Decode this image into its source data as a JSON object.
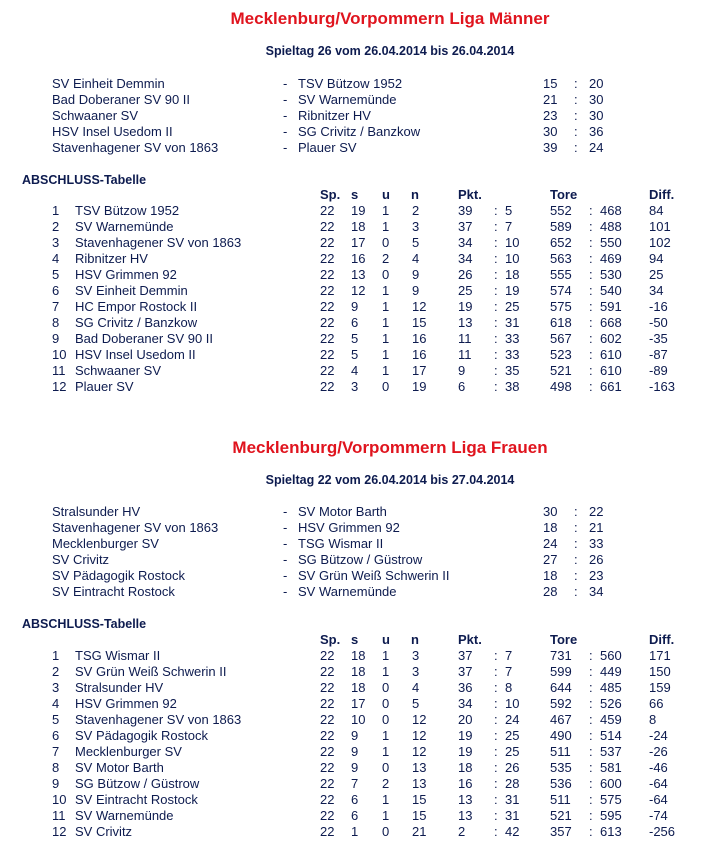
{
  "leagues": [
    {
      "title": "Mecklenburg/Vorpommern Liga Männer",
      "subtitle": "Spieltag 26 vom 26.04.2014 bis 26.04.2014",
      "matches": [
        {
          "home": "SV Einheit Demmin",
          "away": "TSV Bützow 1952",
          "h": "15",
          "a": "20"
        },
        {
          "home": "Bad Doberaner SV 90 II",
          "away": "SV Warnemünde",
          "h": "21",
          "a": "30"
        },
        {
          "home": "Schwaaner SV",
          "away": "Ribnitzer HV",
          "h": "23",
          "a": "30"
        },
        {
          "home": "HSV Insel Usedom II",
          "away": "SG Crivitz / Banzkow",
          "h": "30",
          "a": "36"
        },
        {
          "home": "Stavenhagener SV von 1863",
          "away": "Plauer SV",
          "h": "39",
          "a": "24"
        }
      ],
      "table_title": "ABSCHLUSS-Tabelle",
      "headers": {
        "sp": "Sp.",
        "s": "s",
        "u": "u",
        "n": "n",
        "pkt": "Pkt.",
        "tore": "Tore",
        "diff": "Diff."
      },
      "rows": [
        {
          "rank": "1",
          "team": "TSV Bützow 1952",
          "sp": "22",
          "s": "19",
          "u": "1",
          "n": "2",
          "pp": "39",
          "pm": "5",
          "tp": "552",
          "tm": "468",
          "diff": "84"
        },
        {
          "rank": "2",
          "team": "SV Warnemünde",
          "sp": "22",
          "s": "18",
          "u": "1",
          "n": "3",
          "pp": "37",
          "pm": "7",
          "tp": "589",
          "tm": "488",
          "diff": "101"
        },
        {
          "rank": "3",
          "team": "Stavenhagener SV von 1863",
          "sp": "22",
          "s": "17",
          "u": "0",
          "n": "5",
          "pp": "34",
          "pm": "10",
          "tp": "652",
          "tm": "550",
          "diff": "102"
        },
        {
          "rank": "4",
          "team": "Ribnitzer HV",
          "sp": "22",
          "s": "16",
          "u": "2",
          "n": "4",
          "pp": "34",
          "pm": "10",
          "tp": "563",
          "tm": "469",
          "diff": "94"
        },
        {
          "rank": "5",
          "team": "HSV Grimmen 92",
          "sp": "22",
          "s": "13",
          "u": "0",
          "n": "9",
          "pp": "26",
          "pm": "18",
          "tp": "555",
          "tm": "530",
          "diff": "25"
        },
        {
          "rank": "6",
          "team": "SV Einheit Demmin",
          "sp": "22",
          "s": "12",
          "u": "1",
          "n": "9",
          "pp": "25",
          "pm": "19",
          "tp": "574",
          "tm": "540",
          "diff": "34"
        },
        {
          "rank": "7",
          "team": "HC Empor Rostock II",
          "sp": "22",
          "s": "9",
          "u": "1",
          "n": "12",
          "pp": "19",
          "pm": "25",
          "tp": "575",
          "tm": "591",
          "diff": "-16"
        },
        {
          "rank": "8",
          "team": "SG Crivitz / Banzkow",
          "sp": "22",
          "s": "6",
          "u": "1",
          "n": "15",
          "pp": "13",
          "pm": "31",
          "tp": "618",
          "tm": "668",
          "diff": "-50"
        },
        {
          "rank": "9",
          "team": "Bad Doberaner SV 90 II",
          "sp": "22",
          "s": "5",
          "u": "1",
          "n": "16",
          "pp": "11",
          "pm": "33",
          "tp": "567",
          "tm": "602",
          "diff": "-35"
        },
        {
          "rank": "10",
          "team": "HSV Insel Usedom II",
          "sp": "22",
          "s": "5",
          "u": "1",
          "n": "16",
          "pp": "11",
          "pm": "33",
          "tp": "523",
          "tm": "610",
          "diff": "-87"
        },
        {
          "rank": "11",
          "team": "Schwaaner SV",
          "sp": "22",
          "s": "4",
          "u": "1",
          "n": "17",
          "pp": "9",
          "pm": "35",
          "tp": "521",
          "tm": "610",
          "diff": "-89"
        },
        {
          "rank": "12",
          "team": "Plauer SV",
          "sp": "22",
          "s": "3",
          "u": "0",
          "n": "19",
          "pp": "6",
          "pm": "38",
          "tp": "498",
          "tm": "661",
          "diff": "-163"
        }
      ]
    },
    {
      "title": "Mecklenburg/Vorpommern Liga Frauen",
      "subtitle": "Spieltag 22 vom 26.04.2014 bis 27.04.2014",
      "matches": [
        {
          "home": "Stralsunder HV",
          "away": "SV Motor Barth",
          "h": "30",
          "a": "22"
        },
        {
          "home": "Stavenhagener SV von 1863",
          "away": "HSV Grimmen 92",
          "h": "18",
          "a": "21"
        },
        {
          "home": "Mecklenburger SV",
          "away": "TSG Wismar II",
          "h": "24",
          "a": "33"
        },
        {
          "home": "SV Crivitz",
          "away": "SG Bützow / Güstrow",
          "h": "27",
          "a": "26"
        },
        {
          "home": "SV Pädagogik Rostock",
          "away": "SV Grün Weiß Schwerin II",
          "h": "18",
          "a": "23"
        },
        {
          "home": "SV Eintracht Rostock",
          "away": "SV Warnemünde",
          "h": "28",
          "a": "34"
        }
      ],
      "table_title": "ABSCHLUSS-Tabelle",
      "headers": {
        "sp": "Sp.",
        "s": "s",
        "u": "u",
        "n": "n",
        "pkt": "Pkt.",
        "tore": "Tore",
        "diff": "Diff."
      },
      "rows": [
        {
          "rank": "1",
          "team": "TSG Wismar II",
          "sp": "22",
          "s": "18",
          "u": "1",
          "n": "3",
          "pp": "37",
          "pm": "7",
          "tp": "731",
          "tm": "560",
          "diff": "171"
        },
        {
          "rank": "2",
          "team": "SV Grün Weiß Schwerin II",
          "sp": "22",
          "s": "18",
          "u": "1",
          "n": "3",
          "pp": "37",
          "pm": "7",
          "tp": "599",
          "tm": "449",
          "diff": "150"
        },
        {
          "rank": "3",
          "team": "Stralsunder HV",
          "sp": "22",
          "s": "18",
          "u": "0",
          "n": "4",
          "pp": "36",
          "pm": "8",
          "tp": "644",
          "tm": "485",
          "diff": "159"
        },
        {
          "rank": "4",
          "team": "HSV Grimmen 92",
          "sp": "22",
          "s": "17",
          "u": "0",
          "n": "5",
          "pp": "34",
          "pm": "10",
          "tp": "592",
          "tm": "526",
          "diff": "66"
        },
        {
          "rank": "5",
          "team": "Stavenhagener SV von 1863",
          "sp": "22",
          "s": "10",
          "u": "0",
          "n": "12",
          "pp": "20",
          "pm": "24",
          "tp": "467",
          "tm": "459",
          "diff": "8"
        },
        {
          "rank": "6",
          "team": "SV Pädagogik Rostock",
          "sp": "22",
          "s": "9",
          "u": "1",
          "n": "12",
          "pp": "19",
          "pm": "25",
          "tp": "490",
          "tm": "514",
          "diff": "-24"
        },
        {
          "rank": "7",
          "team": "Mecklenburger SV",
          "sp": "22",
          "s": "9",
          "u": "1",
          "n": "12",
          "pp": "19",
          "pm": "25",
          "tp": "511",
          "tm": "537",
          "diff": "-26"
        },
        {
          "rank": "8",
          "team": "SV Motor Barth",
          "sp": "22",
          "s": "9",
          "u": "0",
          "n": "13",
          "pp": "18",
          "pm": "26",
          "tp": "535",
          "tm": "581",
          "diff": "-46"
        },
        {
          "rank": "9",
          "team": "SG Bützow / Güstrow",
          "sp": "22",
          "s": "7",
          "u": "2",
          "n": "13",
          "pp": "16",
          "pm": "28",
          "tp": "536",
          "tm": "600",
          "diff": "-64"
        },
        {
          "rank": "10",
          "team": "SV Eintracht Rostock",
          "sp": "22",
          "s": "6",
          "u": "1",
          "n": "15",
          "pp": "13",
          "pm": "31",
          "tp": "511",
          "tm": "575",
          "diff": "-64"
        },
        {
          "rank": "11",
          "team": "SV Warnemünde",
          "sp": "22",
          "s": "6",
          "u": "1",
          "n": "15",
          "pp": "13",
          "pm": "31",
          "tp": "521",
          "tm": "595",
          "diff": "-74"
        },
        {
          "rank": "12",
          "team": "SV Crivitz",
          "sp": "22",
          "s": "1",
          "u": "0",
          "n": "21",
          "pp": "2",
          "pm": "42",
          "tp": "357",
          "tm": "613",
          "diff": "-256"
        }
      ]
    }
  ],
  "separators": {
    "dash": "-",
    "colon": ":"
  }
}
